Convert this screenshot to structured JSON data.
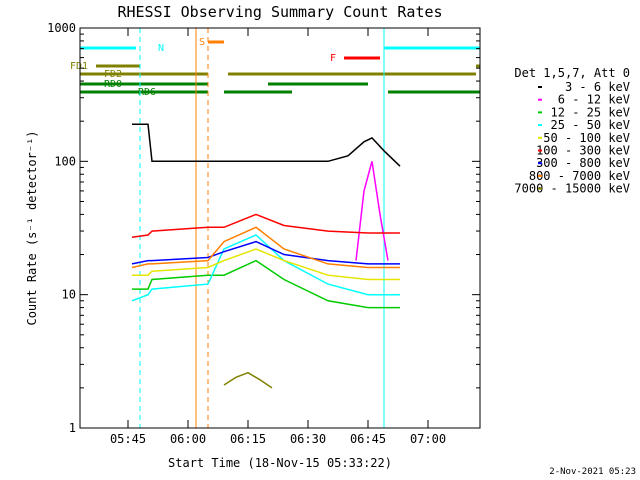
{
  "chart_data": {
    "type": "line",
    "title": "RHESSI Observing Summary Count Rates",
    "xlabel": "Start Time (18-Nov-15 05:33:22)",
    "ylabel": "Count Rate (s⁻¹ detector⁻¹)",
    "xlim": [
      "05:33",
      "07:13"
    ],
    "ylim": [
      1,
      1000
    ],
    "yscale": "log",
    "x_ticks": [
      "05:45",
      "06:00",
      "06:15",
      "06:30",
      "06:45",
      "07:00"
    ],
    "y_ticks": [
      "1",
      "10",
      "100",
      "1000"
    ],
    "legend_title": "Det 1,5,7, Att 0",
    "legend_position": "right",
    "footer_date": "2-Nov-2021 05:23",
    "series": [
      {
        "name": "3 - 6 keV",
        "color": "#000000",
        "x": [
          "05:46",
          "05:50",
          "05:51",
          "06:05",
          "06:09",
          "06:24",
          "06:35",
          "06:40",
          "06:44",
          "06:46",
          "06:49",
          "06:53"
        ],
        "values": [
          190,
          190,
          100,
          100,
          100,
          100,
          100,
          110,
          140,
          150,
          120,
          92
        ]
      },
      {
        "name": "6 - 12 keV",
        "color": "#ff00ff",
        "x": [
          "06:42",
          "06:44",
          "06:46",
          "06:48",
          "06:50"
        ],
        "values": [
          18,
          60,
          100,
          40,
          18
        ]
      },
      {
        "name": "12 - 25 keV",
        "color": "#00cc00",
        "x": [
          "05:46",
          "05:50",
          "05:51",
          "06:05",
          "06:09",
          "06:17",
          "06:24",
          "06:35",
          "06:45",
          "06:53"
        ],
        "values": [
          11,
          11,
          13,
          14,
          14,
          18,
          13,
          9,
          8,
          8
        ]
      },
      {
        "name": "25 - 50 keV",
        "color": "#00ffff",
        "x": [
          "05:46",
          "05:50",
          "05:51",
          "06:05",
          "06:09",
          "06:17",
          "06:24",
          "06:35",
          "06:45",
          "06:53"
        ],
        "values": [
          9,
          10,
          11,
          12,
          22,
          28,
          18,
          12,
          10,
          10
        ]
      },
      {
        "name": "50 - 100 keV",
        "color": "#e5e500",
        "x": [
          "05:46",
          "05:50",
          "05:51",
          "06:05",
          "06:09",
          "06:17",
          "06:24",
          "06:35",
          "06:45",
          "06:53"
        ],
        "values": [
          14,
          14,
          15,
          16,
          18,
          22,
          18,
          14,
          13,
          13
        ]
      },
      {
        "name": "100 - 300 keV",
        "color": "#ff0000",
        "x": [
          "05:46",
          "05:50",
          "05:51",
          "06:05",
          "06:09",
          "06:17",
          "06:24",
          "06:35",
          "06:45",
          "06:53"
        ],
        "values": [
          27,
          28,
          30,
          32,
          32,
          40,
          33,
          30,
          29,
          29
        ]
      },
      {
        "name": "300 - 800 keV",
        "color": "#0000ff",
        "x": [
          "05:46",
          "05:50",
          "05:51",
          "06:05",
          "06:09",
          "06:17",
          "06:24",
          "06:35",
          "06:45",
          "06:53"
        ],
        "values": [
          17,
          18,
          18,
          19,
          21,
          25,
          20,
          18,
          17,
          17
        ]
      },
      {
        "name": "800 - 7000 keV",
        "color": "#ff8000",
        "x": [
          "05:46",
          "05:50",
          "05:51",
          "06:05",
          "06:09",
          "06:17",
          "06:24",
          "06:35",
          "06:45",
          "06:53"
        ],
        "values": [
          16,
          17,
          17,
          18,
          25,
          32,
          22,
          17,
          16,
          16
        ]
      },
      {
        "name": "7000 - 15000 keV",
        "color": "#808000",
        "x": [
          "06:09",
          "06:12",
          "06:15",
          "06:18",
          "06:21"
        ],
        "values": [
          2.1,
          2.4,
          2.6,
          2.3,
          2.0
        ]
      }
    ],
    "flag_bars": [
      {
        "label": "N",
        "color": "#00ffff",
        "segments": [
          [
            "05:33",
            "05:47"
          ],
          [
            "06:49",
            "07:13"
          ]
        ]
      },
      {
        "label": "S",
        "color": "#ff8000",
        "segments": [
          [
            "06:05",
            "06:09"
          ]
        ]
      },
      {
        "label": "F",
        "color": "#ff0000",
        "segments": [
          [
            "06:39",
            "06:48"
          ]
        ]
      },
      {
        "label": "FD1",
        "color": "#808000",
        "segments": [
          [
            "05:37",
            "05:48"
          ],
          [
            "07:12",
            "07:13"
          ]
        ]
      },
      {
        "label": "FD2",
        "color": "#808000",
        "segments": [
          [
            "05:33",
            "06:05"
          ],
          [
            "06:10",
            "07:12"
          ]
        ]
      },
      {
        "label": "RD0",
        "color": "#008000",
        "segments": [
          [
            "05:33",
            "06:05"
          ],
          [
            "06:20",
            "06:45"
          ]
        ]
      },
      {
        "label": "RD6",
        "color": "#008000",
        "segments": [
          [
            "05:33",
            "06:05"
          ],
          [
            "06:09",
            "06:26"
          ],
          [
            "06:50",
            "07:13"
          ]
        ]
      }
    ],
    "vertical_markers": [
      {
        "x": "05:33",
        "color": "#00ffff",
        "style": "solid"
      },
      {
        "x": "05:48",
        "color": "#00ffff",
        "style": "dashed"
      },
      {
        "x": "06:02",
        "color": "#ff8000",
        "style": "solid"
      },
      {
        "x": "06:05",
        "color": "#ff8000",
        "style": "dashed"
      },
      {
        "x": "06:49",
        "color": "#00ffff",
        "style": "solid"
      },
      {
        "x": "07:13",
        "color": "#00ffff",
        "style": "dashed"
      }
    ]
  }
}
